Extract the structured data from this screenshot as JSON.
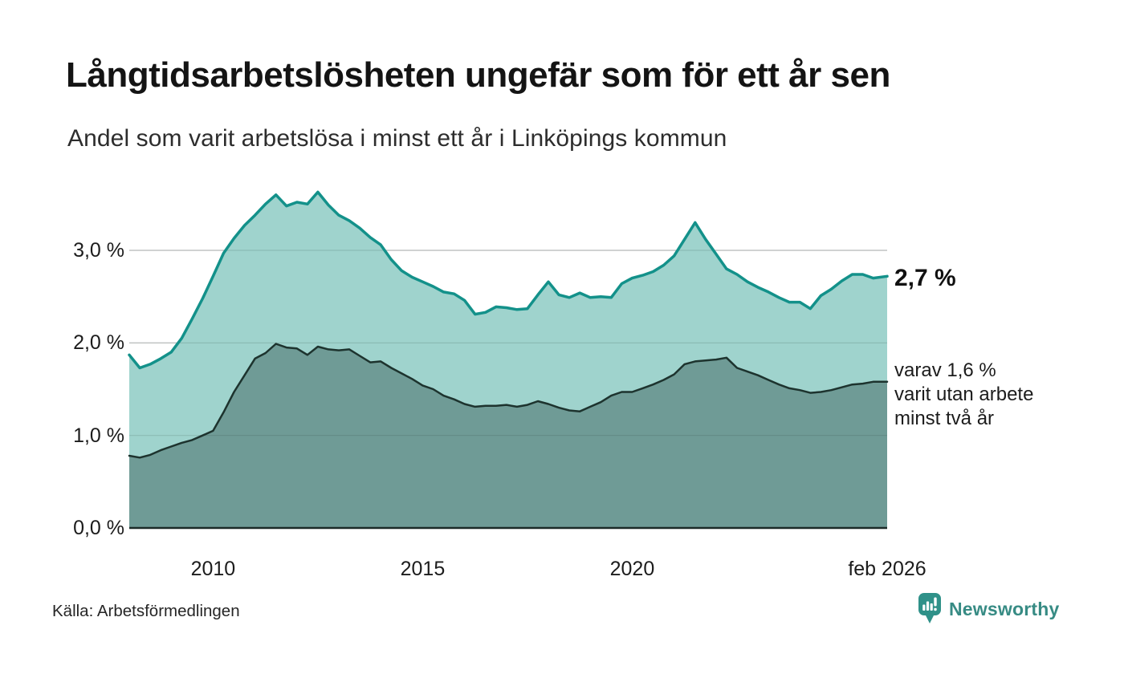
{
  "chart_data": {
    "type": "area",
    "title": "Långtidsarbetslösheten ungefär som för ett år sen",
    "subtitle": "Andel som varit arbetslösa i minst ett år i Linköpings kommun",
    "source": "Källa: Arbetsförmedlingen",
    "x_unit": "decimal_year",
    "xlim": [
      2008.0,
      2026.083
    ],
    "ylim": [
      0,
      3.85
    ],
    "grid": "horizontal",
    "y_ticks": [
      {
        "v": 0,
        "label": "0,0 %"
      },
      {
        "v": 1,
        "label": "1,0 %"
      },
      {
        "v": 2,
        "label": "2,0 %"
      },
      {
        "v": 3,
        "label": "3,0 %"
      }
    ],
    "x_ticks": [
      {
        "v": 2010,
        "label": "2010"
      },
      {
        "v": 2015,
        "label": "2015"
      },
      {
        "v": 2020,
        "label": "2020"
      },
      {
        "v": 2026.083,
        "label": "feb 2026"
      }
    ],
    "x": [
      2008.0,
      2008.25,
      2008.5,
      2008.75,
      2009.0,
      2009.25,
      2009.5,
      2009.75,
      2010.0,
      2010.25,
      2010.5,
      2010.75,
      2011.0,
      2011.25,
      2011.5,
      2011.75,
      2012.0,
      2012.25,
      2012.5,
      2012.75,
      2013.0,
      2013.25,
      2013.5,
      2013.75,
      2014.0,
      2014.25,
      2014.5,
      2014.75,
      2015.0,
      2015.25,
      2015.5,
      2015.75,
      2016.0,
      2016.25,
      2016.5,
      2016.75,
      2017.0,
      2017.25,
      2017.5,
      2017.75,
      2018.0,
      2018.25,
      2018.5,
      2018.75,
      2019.0,
      2019.25,
      2019.5,
      2019.75,
      2020.0,
      2020.25,
      2020.5,
      2020.75,
      2021.0,
      2021.25,
      2021.5,
      2021.75,
      2022.0,
      2022.25,
      2022.5,
      2022.75,
      2023.0,
      2023.25,
      2023.5,
      2023.75,
      2024.0,
      2024.25,
      2024.5,
      2024.75,
      2025.0,
      2025.25,
      2025.5,
      2025.75,
      2026.083
    ],
    "series": [
      {
        "name": "Andel som varit arbetslösa i minst ett år",
        "line_color": "#13918a",
        "fill_color": "#9fd3cd",
        "line_width": 3.5,
        "values": [
          1.87,
          1.73,
          1.77,
          1.83,
          1.9,
          2.05,
          2.26,
          2.48,
          2.72,
          2.97,
          3.13,
          3.27,
          3.38,
          3.5,
          3.6,
          3.48,
          3.52,
          3.5,
          3.63,
          3.49,
          3.38,
          3.32,
          3.24,
          3.14,
          3.06,
          2.9,
          2.78,
          2.71,
          2.66,
          2.61,
          2.55,
          2.53,
          2.46,
          2.31,
          2.33,
          2.39,
          2.38,
          2.36,
          2.37,
          2.52,
          2.66,
          2.52,
          2.49,
          2.54,
          2.49,
          2.5,
          2.49,
          2.64,
          2.7,
          2.73,
          2.77,
          2.84,
          2.94,
          3.12,
          3.3,
          3.12,
          2.96,
          2.8,
          2.74,
          2.66,
          2.6,
          2.55,
          2.49,
          2.44,
          2.44,
          2.37,
          2.51,
          2.58,
          2.67,
          2.74,
          2.74,
          2.7,
          2.72
        ]
      },
      {
        "name": "varav utan arbete minst två år",
        "line_color": "#1d332e",
        "fill_color": "#6f9b96",
        "line_width": 2.5,
        "values": [
          0.78,
          0.76,
          0.79,
          0.84,
          0.88,
          0.92,
          0.95,
          1.0,
          1.05,
          1.25,
          1.47,
          1.65,
          1.83,
          1.89,
          1.99,
          1.95,
          1.94,
          1.87,
          1.96,
          1.93,
          1.92,
          1.93,
          1.86,
          1.79,
          1.8,
          1.73,
          1.67,
          1.61,
          1.54,
          1.5,
          1.43,
          1.39,
          1.34,
          1.31,
          1.32,
          1.32,
          1.33,
          1.31,
          1.33,
          1.37,
          1.34,
          1.3,
          1.27,
          1.26,
          1.31,
          1.36,
          1.43,
          1.47,
          1.47,
          1.51,
          1.55,
          1.6,
          1.66,
          1.77,
          1.8,
          1.81,
          1.82,
          1.84,
          1.73,
          1.69,
          1.65,
          1.6,
          1.55,
          1.51,
          1.49,
          1.46,
          1.47,
          1.49,
          1.52,
          1.55,
          1.56,
          1.58,
          1.58
        ]
      }
    ],
    "annotations": {
      "end_value": "2,7 %",
      "secondary_lines": [
        "varav 1,6 %",
        "varit utan arbete",
        "minst två år"
      ]
    },
    "style": {
      "grid_color": "#d9d9d9",
      "axis_color": "#1c2b28",
      "background": "#ffffff"
    }
  },
  "branding": {
    "name": "Newsworthy",
    "color": "#378b84"
  }
}
